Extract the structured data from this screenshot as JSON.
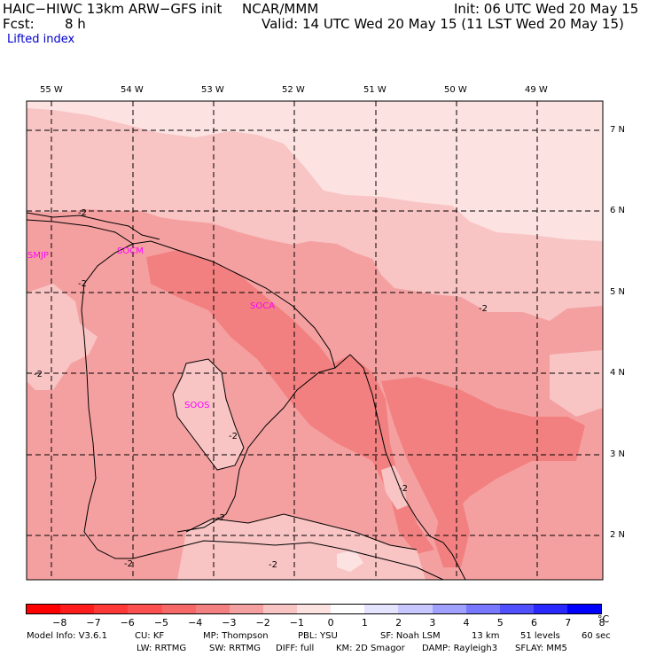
{
  "header": {
    "title_left": "HAIC−HIWC 13km ARW−GFS init",
    "center_org": "NCAR/MMM",
    "init": "Init: 06 UTC Wed 20 May 15",
    "fcst_label": "Fcst:",
    "fcst_value": "8 h",
    "valid": "Valid: 14 UTC Wed 20 May 15 (11 LST Wed 20 May 15)",
    "field": "Lifted index"
  },
  "map": {
    "lon_labels": [
      "55 W",
      "54 W",
      "53 W",
      "52 W",
      "51 W",
      "50 W",
      "49 W"
    ],
    "lat_labels": [
      "7 N",
      "6 N",
      "5 N",
      "4 N",
      "3 N",
      "2 N"
    ],
    "stations": [
      "SMJP",
      "SOCM",
      "SOCA",
      "SOOS"
    ],
    "contour_label": "-2",
    "colors": {
      "shade_darkest": "#f28080",
      "shade_mid": "#f5a0a0",
      "shade_light": "#f8c4c4",
      "shade_lightest": "#fde2e2",
      "grid": "#000000",
      "station": "#ff00ff"
    }
  },
  "colorbar": {
    "labels": [
      "−8",
      "−7",
      "−6",
      "−5",
      "−4",
      "−3",
      "−2",
      "−1",
      "0",
      "1",
      "2",
      "3",
      "4",
      "5",
      "6",
      "7",
      "8"
    ],
    "unit": "°C",
    "colors": [
      "#ff0000",
      "#ff1c1c",
      "#ff3838",
      "#fc5050",
      "#f66868",
      "#f28080",
      "#f5a0a0",
      "#f8c4c4",
      "#fde2e2",
      "#ffffff",
      "#e4e4ff",
      "#c8c8ff",
      "#a0a0ff",
      "#7878ff",
      "#5050ff",
      "#2828ff",
      "#0000ff"
    ]
  },
  "footer": {
    "line1": [
      "Model Info: V3.6.1",
      "CU: KF",
      "MP: Thompson",
      "PBL: YSU",
      "SF: Noah LSM",
      "13 km",
      "51 levels",
      "60 sec"
    ],
    "line2": [
      "LW: RRTMG",
      "SW: RRTMG",
      "DIFF: full",
      "KM: 2D Smagor",
      "DAMP: Rayleigh3",
      "SFLAY: MM5"
    ]
  }
}
